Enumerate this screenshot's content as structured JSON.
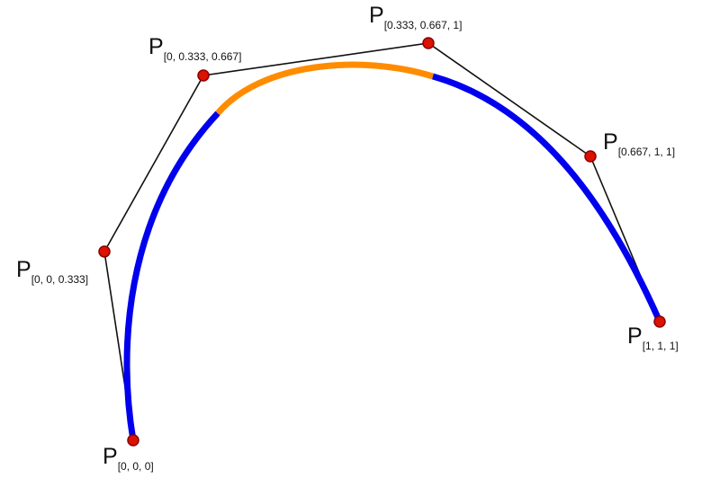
{
  "control_points": [
    {
      "label": "P",
      "subscript": "[0, 0, 0]"
    },
    {
      "label": "P",
      "subscript": "[0, 0, 0.333]"
    },
    {
      "label": "P",
      "subscript": "[0, 0.333, 0.667]"
    },
    {
      "label": "P",
      "subscript": "[0.333, 0.667, 1]"
    },
    {
      "label": "P",
      "subscript": "[0.667, 1, 1]"
    },
    {
      "label": "P",
      "subscript": "[1, 1, 1]"
    }
  ],
  "colors": {
    "curve": "#0000ee",
    "highlight_segment": "#ff8c00",
    "control_polygon": "#111111",
    "point_fill": "#dd1100",
    "point_stroke": "#8b0000"
  }
}
